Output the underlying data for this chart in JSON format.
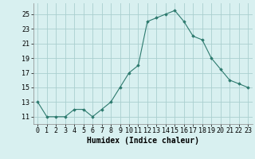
{
  "x": [
    0,
    1,
    2,
    3,
    4,
    5,
    6,
    7,
    8,
    9,
    10,
    11,
    12,
    13,
    14,
    15,
    16,
    17,
    18,
    19,
    20,
    21,
    22,
    23
  ],
  "y": [
    13,
    11,
    11,
    11,
    12,
    12,
    11,
    12,
    13,
    15,
    17,
    18,
    24,
    24.5,
    25,
    25.5,
    24,
    22,
    21.5,
    19,
    17.5,
    16,
    15.5,
    15
  ],
  "xlabel": "Humidex (Indice chaleur)",
  "line_color": "#2d7a6e",
  "marker": "D",
  "marker_size": 1.8,
  "background_color": "#d8f0f0",
  "grid_color": "#aacfcf",
  "ylim": [
    10,
    26.5
  ],
  "yticks": [
    11,
    13,
    15,
    17,
    19,
    21,
    23,
    25
  ],
  "xticks": [
    0,
    1,
    2,
    3,
    4,
    5,
    6,
    7,
    8,
    9,
    10,
    11,
    12,
    13,
    14,
    15,
    16,
    17,
    18,
    19,
    20,
    21,
    22,
    23
  ],
  "xlabel_fontsize": 7,
  "tick_fontsize": 6
}
